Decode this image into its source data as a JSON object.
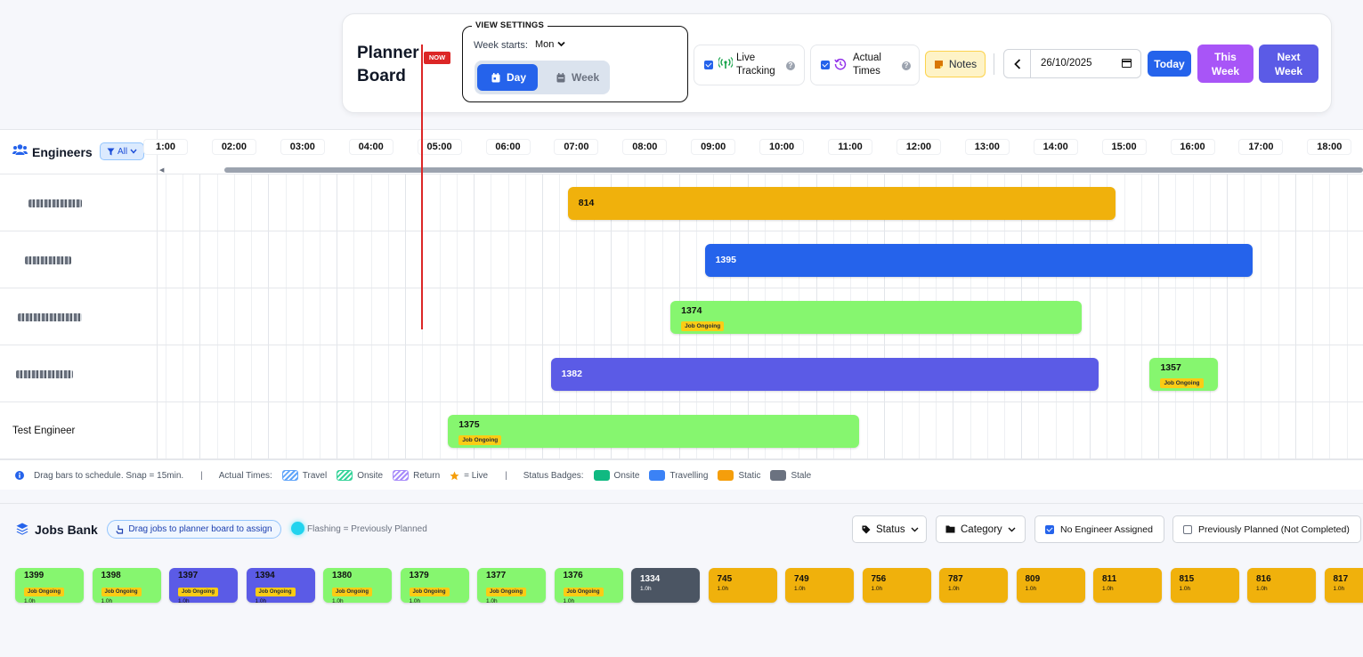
{
  "toolbar": {
    "title": "Planner Board",
    "view_settings": {
      "legend": "VIEW SETTINGS",
      "week_starts_label": "Week starts:",
      "week_starts_value": "Mon",
      "day_label": "Day",
      "week_label": "Week",
      "selected_view": "Day"
    },
    "live_tracking": {
      "label": "Live Tracking",
      "checked": true
    },
    "actual_times": {
      "label": "Actual Times",
      "checked": true
    },
    "notes_label": "Notes",
    "date_value": "26/10/2025",
    "today_label": "Today",
    "this_week_label": "This Week",
    "next_week_label": "Next Week"
  },
  "planner": {
    "engineers_title": "Engineers",
    "filter_label": "All",
    "hours": [
      "1:00",
      "02:00",
      "03:00",
      "04:00",
      "05:00",
      "06:00",
      "07:00",
      "08:00",
      "09:00",
      "10:00",
      "11:00",
      "12:00",
      "13:00",
      "14:00",
      "15:00",
      "16:00",
      "17:00",
      "18:00"
    ],
    "now_label": "NOW",
    "engineers": [
      {
        "name": "",
        "obscured": true
      },
      {
        "name": "",
        "obscured": true
      },
      {
        "name": "",
        "obscured": true
      },
      {
        "name": "",
        "obscured": true
      },
      {
        "name": "Test Engineer",
        "obscured": false
      }
    ],
    "jobs": [
      {
        "id": "814",
        "row": 0,
        "start": "07:00",
        "end": "15:00",
        "color": "#f0b10c",
        "badge": ""
      },
      {
        "id": "1395",
        "row": 1,
        "start": "09:00",
        "end": "17:00",
        "color": "#2563eb",
        "badge": ""
      },
      {
        "id": "1374",
        "row": 2,
        "start": "08:30",
        "end": "14:30",
        "color": "#86f66f",
        "badge": "Job Ongoing"
      },
      {
        "id": "1382",
        "row": 3,
        "start": "06:45",
        "end": "14:45",
        "color": "#5b5be6",
        "badge": ""
      },
      {
        "id": "1357",
        "row": 3,
        "start": "15:30",
        "end": "16:30",
        "color": "#86f66f",
        "badge": "Job Ongoing"
      },
      {
        "id": "1375",
        "row": 4,
        "start": "05:15",
        "end": "11:15",
        "color": "#86f66f",
        "badge": "Job Ongoing"
      }
    ],
    "legend": {
      "hint": "Drag bars to schedule. Snap = 15min.",
      "actual_times_label": "Actual Times:",
      "travel": "Travel",
      "onsite": "Onsite",
      "return": "Return",
      "live": "= Live",
      "status_badges_label": "Status Badges:",
      "badge_onsite": "Onsite",
      "badge_travelling": "Travelling",
      "badge_static": "Static",
      "badge_stale": "Stale",
      "colors": {
        "travel": "#60a5fa",
        "onsite": "#34d399",
        "return": "#a78bfa",
        "status_onsite": "#10b981",
        "status_travelling": "#3b82f6",
        "status_static": "#f59e0b",
        "status_stale": "#6b7280"
      }
    }
  },
  "jobs_bank": {
    "title": "Jobs Bank",
    "drag_hint": "Drag jobs to planner board to assign",
    "flashing_hint": "Flashing = Previously Planned",
    "status_filter": "Status",
    "category_filter": "Category",
    "no_engineer": {
      "label": "No Engineer Assigned",
      "checked": true
    },
    "prev_planned": {
      "label": "Previously Planned (Not Completed)",
      "checked": false
    },
    "jobs": [
      {
        "id": "1399",
        "badge": "Job Ongoing",
        "duration": "1.0h",
        "color": "#86f66f",
        "text": "#111"
      },
      {
        "id": "1398",
        "badge": "Job Ongoing",
        "duration": "1.0h",
        "color": "#86f66f",
        "text": "#111"
      },
      {
        "id": "1397",
        "badge": "Job Ongoing",
        "duration": "1.0h",
        "color": "#5b5be6",
        "text": "#111"
      },
      {
        "id": "1394",
        "badge": "Job Ongoing",
        "duration": "1.0h",
        "color": "#5b5be6",
        "text": "#111"
      },
      {
        "id": "1380",
        "badge": "Job Ongoing",
        "duration": "1.0h",
        "color": "#86f66f",
        "text": "#111"
      },
      {
        "id": "1379",
        "badge": "Job Ongoing",
        "duration": "1.0h",
        "color": "#86f66f",
        "text": "#111"
      },
      {
        "id": "1377",
        "badge": "Job Ongoing",
        "duration": "1.0h",
        "color": "#86f66f",
        "text": "#111"
      },
      {
        "id": "1376",
        "badge": "Job Ongoing",
        "duration": "1.0h",
        "color": "#86f66f",
        "text": "#111"
      },
      {
        "id": "1334",
        "badge": "",
        "duration": "1.0h",
        "color": "#4b5563",
        "text": "#fff"
      },
      {
        "id": "745",
        "badge": "",
        "duration": "1.0h",
        "color": "#f0b10c",
        "text": "#111"
      },
      {
        "id": "749",
        "badge": "",
        "duration": "1.0h",
        "color": "#f0b10c",
        "text": "#111"
      },
      {
        "id": "756",
        "badge": "",
        "duration": "1.0h",
        "color": "#f0b10c",
        "text": "#111"
      },
      {
        "id": "787",
        "badge": "",
        "duration": "1.0h",
        "color": "#f0b10c",
        "text": "#111"
      },
      {
        "id": "809",
        "badge": "",
        "duration": "1.0h",
        "color": "#f0b10c",
        "text": "#111"
      },
      {
        "id": "811",
        "badge": "",
        "duration": "1.0h",
        "color": "#f0b10c",
        "text": "#111"
      },
      {
        "id": "815",
        "badge": "",
        "duration": "1.0h",
        "color": "#f0b10c",
        "text": "#111"
      },
      {
        "id": "816",
        "badge": "",
        "duration": "1.0h",
        "color": "#f0b10c",
        "text": "#111"
      },
      {
        "id": "817",
        "badge": "",
        "duration": "1.0h",
        "color": "#f0b10c",
        "text": "#111"
      }
    ]
  }
}
